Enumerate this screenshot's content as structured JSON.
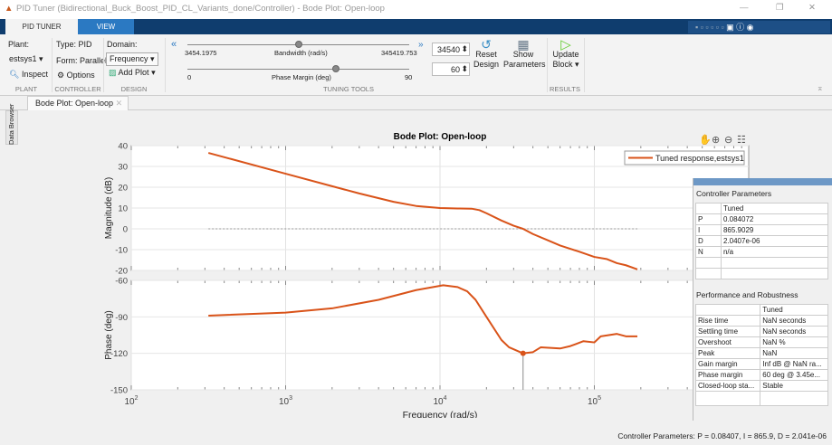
{
  "window": {
    "title": "PID Tuner (Bidirectional_Buck_Boost_PID_CL_Variants_done/Controller) - Bode Plot: Open-loop"
  },
  "tabs": [
    {
      "label": "PID TUNER",
      "active": true
    },
    {
      "label": "VIEW",
      "active": false
    }
  ],
  "ribbon": {
    "plant": {
      "label": "Plant:",
      "value": "estsys1",
      "inspect": "Inspect",
      "section": "PLANT"
    },
    "controller": {
      "type": "Type: PID",
      "form": "Form: Parallel",
      "options": "Options",
      "section": "CONTROLLER"
    },
    "design": {
      "domain_label": "Domain:",
      "domain_value": "Frequency",
      "add_plot": "Add Plot",
      "section": "DESIGN"
    },
    "tuning": {
      "bandwidth_min": "3454.1975",
      "bandwidth_label": "Bandwidth (rad/s)",
      "bandwidth_max": "345419.753",
      "bandwidth_value": "34540",
      "bandwidth_slider_fraction": 0.5,
      "phase_min": "0",
      "phase_label": "Phase Margin (deg)",
      "phase_max": "90",
      "phase_value": "60",
      "phase_slider_fraction": 0.667,
      "section": "TUNING TOOLS"
    },
    "reset": [
      "Reset",
      "Design"
    ],
    "show_params": [
      "Show",
      "Parameters"
    ],
    "update": [
      "Update",
      "Block"
    ],
    "results_section": "RESULTS"
  },
  "doc_tab": "Bode Plot: Open-loop",
  "sidebar_label": "Data Browser",
  "chart_data": {
    "type": "line",
    "title": "Bode Plot: Open-loop",
    "xlabel": "Frequency  (rad/s)",
    "xscale": "log",
    "xlim": [
      100,
      1000000
    ],
    "xticks": [
      {
        "v": 100,
        "b": "10",
        "e": "2"
      },
      {
        "v": 1000,
        "b": "10",
        "e": "3"
      },
      {
        "v": 10000,
        "b": "10",
        "e": "4"
      },
      {
        "v": 100000,
        "b": "10",
        "e": "5"
      }
    ],
    "grid": true,
    "legend": {
      "entries": [
        "Tuned response,estsys1"
      ],
      "placement": "top-right"
    },
    "color": "#d95319",
    "magnitude": {
      "ylabel": "Magnitude (dB)",
      "ylim": [
        -20,
        40
      ],
      "yticks": [
        "40",
        "30",
        "20",
        "10",
        "0",
        "-10",
        "-20"
      ],
      "x": [
        316,
        1000,
        2000,
        3000,
        5000,
        7000,
        10000,
        13000,
        16000,
        18000,
        20000,
        25000,
        30000,
        34540,
        40000,
        50000,
        60000,
        80000,
        100000,
        120000,
        140000,
        160000,
        190000
      ],
      "y": [
        36.5,
        26.5,
        20.5,
        17,
        13,
        11,
        10,
        9.8,
        9.7,
        9,
        7.5,
        4,
        1.5,
        0,
        -2.5,
        -5.5,
        -8,
        -11,
        -13.5,
        -14.5,
        -16.5,
        -17.5,
        -19.5
      ]
    },
    "phase": {
      "ylabel": "Phase (deg)",
      "ylim": [
        -150,
        -60
      ],
      "yticks": [
        "-60",
        "-90",
        "-120",
        "-150"
      ],
      "x": [
        316,
        1000,
        2000,
        4000,
        7000,
        10500,
        13000,
        15000,
        17000,
        20000,
        25000,
        28000,
        34540,
        40000,
        45000,
        60000,
        70000,
        85000,
        100000,
        110000,
        140000,
        160000,
        190000
      ],
      "y": [
        -89,
        -86.5,
        -83,
        -76,
        -68,
        -64,
        -65.5,
        -69,
        -76,
        -90,
        -109,
        -115,
        -120,
        -119,
        -115,
        -116,
        -114,
        -110,
        -111,
        -106,
        -104,
        -106,
        -106
      ],
      "marker": {
        "x": 34540,
        "y": -120
      }
    }
  },
  "panel": {
    "params_title": "Controller Parameters",
    "params_col": "Tuned",
    "params": [
      [
        "P",
        "0.084072"
      ],
      [
        "I",
        "865.9029"
      ],
      [
        "D",
        "2.0407e-06"
      ],
      [
        "N",
        "n/a"
      ],
      [
        "",
        ""
      ],
      [
        "",
        ""
      ]
    ],
    "perf_title": "Performance and Robustness",
    "perf_col": "Tuned",
    "perf": [
      [
        "Rise time",
        "NaN seconds"
      ],
      [
        "Settling time",
        "NaN seconds"
      ],
      [
        "Overshoot",
        "NaN %"
      ],
      [
        "Peak",
        "NaN"
      ],
      [
        "Gain margin",
        "Inf dB @ NaN ra..."
      ],
      [
        "Phase margin",
        "60 deg @ 3.45e..."
      ],
      [
        "Closed-loop sta...",
        "Stable"
      ]
    ]
  },
  "status": "Controller Parameters: P = 0.08407, I = 865.9, D = 2.041e-06"
}
